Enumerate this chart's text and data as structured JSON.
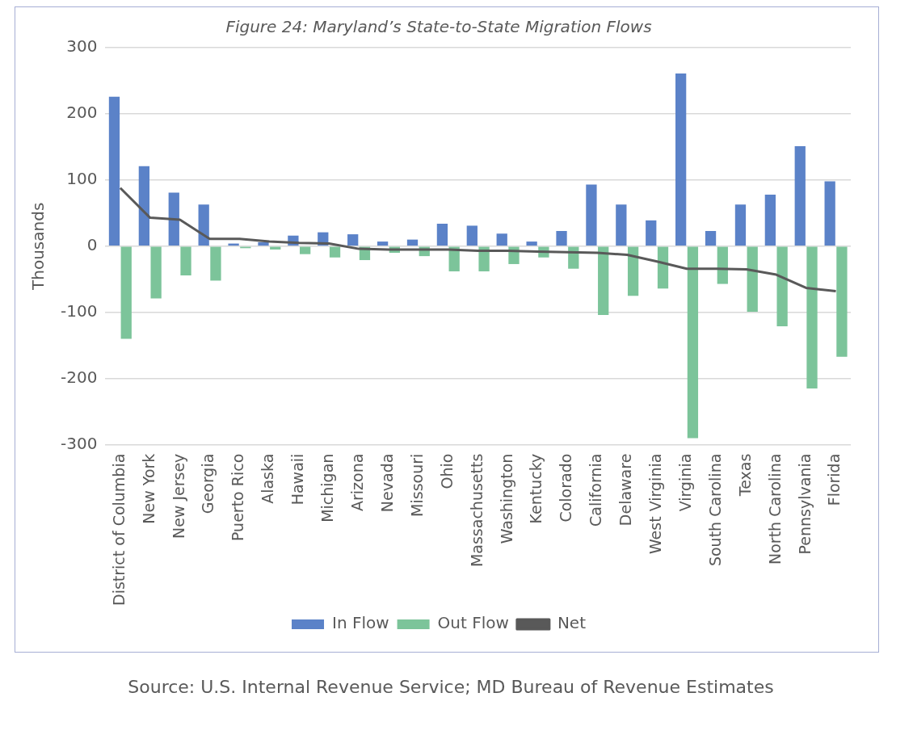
{
  "chart_data": {
    "type": "bar",
    "title": "Figure 24: Maryland’s State-to-State Migration Flows",
    "ylabel": "Thousands",
    "categories": [
      "District of Columbia",
      "New York",
      "New Jersey",
      "Georgia",
      "Puerto Rico",
      "Alaska",
      "Hawaii",
      "Michigan",
      "Arizona",
      "Nevada",
      "Missouri",
      "Ohio",
      "Massachusetts",
      "Washington",
      "Kentucky",
      "Colorado",
      "California",
      "Delaware",
      "West Virginia",
      "Virginia",
      "South Carolina",
      "Texas",
      "North Carolina",
      "Pennsylvania",
      "Florida"
    ],
    "series": [
      {
        "name": "In Flow",
        "color": "#5b82c8",
        "values": [
          226,
          121,
          81,
          63,
          4,
          6,
          16,
          21,
          18,
          7,
          10,
          34,
          31,
          19,
          7,
          23,
          93,
          63,
          39,
          261,
          23,
          63,
          78,
          151,
          98
        ]
      },
      {
        "name": "Out Flow",
        "color": "#7cc49a",
        "values": [
          -140,
          -79,
          -44,
          -52,
          -3,
          -5,
          -12,
          -17,
          -21,
          -10,
          -15,
          -38,
          -38,
          -27,
          -17,
          -34,
          -104,
          -75,
          -64,
          -290,
          -57,
          -99,
          -121,
          -215,
          -167
        ]
      },
      {
        "name": "Net",
        "type": "line",
        "color": "#595959",
        "values": [
          88,
          43,
          40,
          11,
          11,
          7,
          5,
          4,
          -4,
          -5,
          -5,
          -5,
          -7,
          -7,
          -8,
          -9,
          -10,
          -13,
          -23,
          -34,
          -34,
          -35,
          -43,
          -63,
          -68
        ]
      }
    ],
    "ylim": [
      -300,
      300
    ],
    "yticks": [
      -300,
      -200,
      -100,
      0,
      100,
      200,
      300
    ],
    "grid": "y",
    "legend": "bottom",
    "marker": "none",
    "line_style": "solid",
    "annotations": [
      "Source: U.S. Internal Revenue Service; MD Bureau of Revenue Estimates"
    ]
  }
}
